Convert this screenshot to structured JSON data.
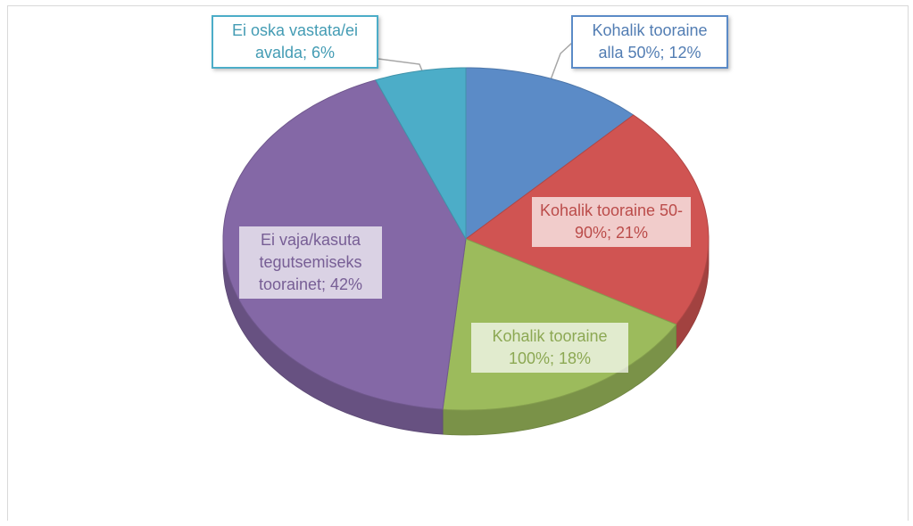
{
  "chart_data": {
    "type": "pie",
    "categories": [
      "Kohalik tooraine alla 50%",
      "Kohalik tooraine 50-90%",
      "Kohalik tooraine 100%",
      "Ei vaja/kasuta tegutsemiseks toorainet",
      "Ei oska vastata/ei avalda"
    ],
    "values": [
      12,
      21,
      18,
      42,
      6
    ],
    "value_labels": [
      "12%",
      "21%",
      "18%",
      "42%",
      "6%"
    ],
    "separator": "; ",
    "colors": [
      "#5b8bc7",
      "#d05452",
      "#9cbb5c",
      "#8468a6",
      "#4cadc8"
    ]
  }
}
